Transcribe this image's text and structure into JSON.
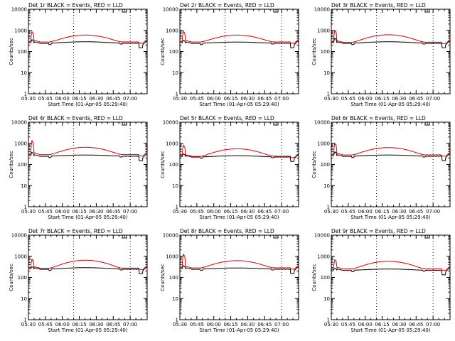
{
  "figure": {
    "colors": {
      "events": "#000000",
      "lld": "#e00000",
      "background": "#ffffff"
    }
  },
  "chart_data": [
    {
      "type": "line",
      "panel": "det-1r",
      "title": "Det 1r BLACK = Events, RED = LLD",
      "xlabel": "Start Time (01-Apr-05 05:29:40)",
      "ylabel": "Counts/sec",
      "xlim": [
        330,
        435
      ],
      "ylim": [
        1,
        10000
      ],
      "yscale": "log",
      "x_ticks": [
        "05:30",
        "05:45",
        "06:00",
        "06:15",
        "06:30",
        "06:45",
        "07:00"
      ],
      "y_ticks": [
        "1",
        "10",
        "100",
        "1000",
        "10000"
      ],
      "vlines_minutes": [
        370,
        420
      ],
      "series": [
        {
          "name": "Events",
          "color": "#000000",
          "base_lo": 250,
          "base_hi": 290,
          "spike": 380
        },
        {
          "name": "LLD",
          "color": "#e00000",
          "base_lo": 290,
          "base_hi": 600,
          "spike": 950
        }
      ]
    },
    {
      "type": "line",
      "panel": "det-2r",
      "title": "Det 2r BLACK = Events, RED = LLD",
      "xlabel": "Start Time (01-Apr-05 05:29:40)",
      "ylabel": "Counts/sec",
      "xlim": [
        330,
        435
      ],
      "ylim": [
        1,
        10000
      ],
      "yscale": "log",
      "x_ticks": [
        "05:30",
        "05:45",
        "06:00",
        "06:15",
        "06:30",
        "06:45",
        "07:00"
      ],
      "y_ticks": [
        "1",
        "10",
        "100",
        "1000",
        "10000"
      ],
      "vlines_minutes": [
        370,
        420
      ],
      "series": [
        {
          "name": "Events",
          "color": "#000000",
          "base_lo": 250,
          "base_hi": 280,
          "spike": 350
        },
        {
          "name": "LLD",
          "color": "#e00000",
          "base_lo": 290,
          "base_hi": 600,
          "spike": 1000
        }
      ]
    },
    {
      "type": "line",
      "panel": "det-3r",
      "title": "Det 3r BLACK = Events, RED = LLD",
      "xlabel": "Start Time (01-Apr-05 05:29:40)",
      "ylabel": "Counts/sec",
      "xlim": [
        330,
        435
      ],
      "ylim": [
        1,
        10000
      ],
      "yscale": "log",
      "x_ticks": [
        "05:30",
        "05:45",
        "06:00",
        "06:15",
        "06:30",
        "06:45",
        "07:00"
      ],
      "y_ticks": [
        "1",
        "10",
        "100",
        "1000",
        "10000"
      ],
      "vlines_minutes": [
        370,
        420
      ],
      "series": [
        {
          "name": "Events",
          "color": "#000000",
          "base_lo": 250,
          "base_hi": 290,
          "spike": 450
        },
        {
          "name": "LLD",
          "color": "#e00000",
          "base_lo": 280,
          "base_hi": 620,
          "spike": 1100
        }
      ]
    },
    {
      "type": "line",
      "panel": "det-4r",
      "title": "Det 4r BLACK = Events, RED = LLD",
      "xlabel": "Start Time (01-Apr-05 05:29:40)",
      "ylabel": "Counts/sec",
      "xlim": [
        330,
        435
      ],
      "ylim": [
        1,
        10000
      ],
      "yscale": "log",
      "x_ticks": [
        "05:30",
        "05:45",
        "06:00",
        "06:15",
        "06:30",
        "06:45",
        "07:00"
      ],
      "y_ticks": [
        "1",
        "10",
        "100",
        "1000",
        "10000"
      ],
      "vlines_minutes": [
        370,
        420
      ],
      "series": [
        {
          "name": "Events",
          "color": "#000000",
          "base_lo": 250,
          "base_hi": 280,
          "spike": 400
        },
        {
          "name": "LLD",
          "color": "#e00000",
          "base_lo": 300,
          "base_hi": 650,
          "spike": 1500
        }
      ]
    },
    {
      "type": "line",
      "panel": "det-5r",
      "title": "Det 5r BLACK = Events, RED = LLD",
      "xlabel": "Start Time (01-Apr-05 05:29:40)",
      "ylabel": "Counts/sec",
      "xlim": [
        330,
        435
      ],
      "ylim": [
        1,
        10000
      ],
      "yscale": "log",
      "x_ticks": [
        "05:30",
        "05:45",
        "06:00",
        "06:15",
        "06:30",
        "06:45",
        "07:00"
      ],
      "y_ticks": [
        "1",
        "10",
        "100",
        "1000",
        "10000"
      ],
      "vlines_minutes": [
        370,
        420
      ],
      "series": [
        {
          "name": "Events",
          "color": "#000000",
          "base_lo": 230,
          "base_hi": 260,
          "spike": 330
        },
        {
          "name": "LLD",
          "color": "#e00000",
          "base_lo": 250,
          "base_hi": 550,
          "spike": 900
        }
      ]
    },
    {
      "type": "line",
      "panel": "det-6r",
      "title": "Det 6r BLACK = Events, RED = LLD",
      "xlabel": "Start Time (01-Apr-05 05:29:40)",
      "ylabel": "Counts/sec",
      "xlim": [
        330,
        435
      ],
      "ylim": [
        1,
        10000
      ],
      "yscale": "log",
      "x_ticks": [
        "05:30",
        "05:45",
        "06:00",
        "06:15",
        "06:30",
        "06:45",
        "07:00"
      ],
      "y_ticks": [
        "1",
        "10",
        "100",
        "1000",
        "10000"
      ],
      "vlines_minutes": [
        370,
        420
      ],
      "series": [
        {
          "name": "Events",
          "color": "#000000",
          "base_lo": 250,
          "base_hi": 280,
          "spike": 420
        },
        {
          "name": "LLD",
          "color": "#e00000",
          "base_lo": 290,
          "base_hi": 630,
          "spike": 1100
        }
      ]
    },
    {
      "type": "line",
      "panel": "det-7r",
      "title": "Det 7r BLACK = Events, RED = LLD",
      "xlabel": "Start Time (01-Apr-05 05:29:40)",
      "ylabel": "Counts/sec",
      "xlim": [
        330,
        435
      ],
      "ylim": [
        1,
        10000
      ],
      "yscale": "log",
      "x_ticks": [
        "05:30",
        "05:45",
        "06:00",
        "06:15",
        "06:30",
        "06:45",
        "07:00"
      ],
      "y_ticks": [
        "1",
        "10",
        "100",
        "1000",
        "10000"
      ],
      "vlines_minutes": [
        370,
        420
      ],
      "series": [
        {
          "name": "Events",
          "color": "#000000",
          "base_lo": 250,
          "base_hi": 290,
          "spike": 330
        },
        {
          "name": "LLD",
          "color": "#e00000",
          "base_lo": 280,
          "base_hi": 650,
          "spike": 800
        }
      ]
    },
    {
      "type": "line",
      "panel": "det-8r",
      "title": "Det 8r BLACK = Events, RED = LLD",
      "xlabel": "Start Time (01-Apr-05 05:29:40)",
      "ylabel": "Counts/sec",
      "xlim": [
        330,
        435
      ],
      "ylim": [
        1,
        10000
      ],
      "yscale": "log",
      "x_ticks": [
        "05:30",
        "05:45",
        "06:00",
        "06:15",
        "06:30",
        "06:45",
        "07:00"
      ],
      "y_ticks": [
        "1",
        "10",
        "100",
        "1000",
        "10000"
      ],
      "vlines_minutes": [
        370,
        420
      ],
      "series": [
        {
          "name": "Events",
          "color": "#000000",
          "base_lo": 250,
          "base_hi": 280,
          "spike": 380
        },
        {
          "name": "LLD",
          "color": "#e00000",
          "base_lo": 290,
          "base_hi": 620,
          "spike": 1400
        }
      ]
    },
    {
      "type": "line",
      "panel": "det-9r",
      "title": "Det 9r BLACK = Events, RED = LLD",
      "xlabel": "Start Time (01-Apr-05 05:29:40)",
      "ylabel": "Counts/sec",
      "xlim": [
        330,
        435
      ],
      "ylim": [
        1,
        10000
      ],
      "yscale": "log",
      "x_ticks": [
        "05:30",
        "05:45",
        "06:00",
        "06:15",
        "06:30",
        "06:45",
        "07:00"
      ],
      "y_ticks": [
        "1",
        "10",
        "100",
        "1000",
        "10000"
      ],
      "vlines_minutes": [
        370,
        420
      ],
      "series": [
        {
          "name": "Events",
          "color": "#000000",
          "base_lo": 220,
          "base_hi": 250,
          "spike": 280
        },
        {
          "name": "LLD",
          "color": "#e00000",
          "base_lo": 260,
          "base_hi": 580,
          "spike": 750
        }
      ]
    }
  ]
}
